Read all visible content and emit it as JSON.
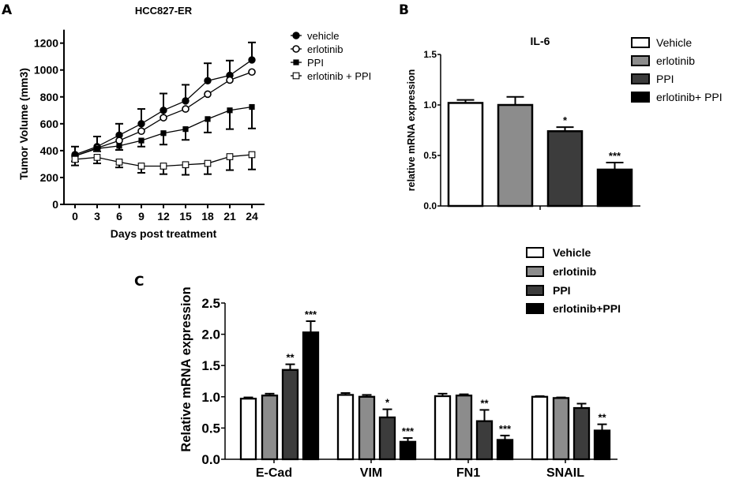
{
  "chart_data": [
    {
      "panel": "A",
      "type": "line",
      "title": "HCC827-ER",
      "xlabel": "Days post treatment",
      "ylabel": "Tumor Volume (mm3)",
      "x": [
        0,
        3,
        6,
        9,
        12,
        15,
        18,
        21,
        24
      ],
      "xticks": [
        "0",
        "3",
        "6",
        "9",
        "12",
        "15",
        "18",
        "21",
        "24"
      ],
      "yticks": [
        "0",
        "200",
        "400",
        "600",
        "800",
        "1000",
        "1200"
      ],
      "ylim": [
        0,
        1300
      ],
      "legend_position": "right",
      "series": [
        {
          "name": "vehicle",
          "marker": "filled-circle",
          "values": [
            370,
            430,
            515,
            600,
            700,
            770,
            920,
            960,
            1075
          ],
          "error_up": [
            60,
            75,
            85,
            110,
            125,
            120,
            130,
            110,
            130
          ]
        },
        {
          "name": "erlotinib",
          "marker": "open-circle",
          "values": [
            360,
            420,
            475,
            545,
            645,
            710,
            820,
            925,
            985
          ],
          "error_up": [
            0,
            0,
            0,
            0,
            0,
            0,
            0,
            0,
            0
          ]
        },
        {
          "name": "PPI",
          "marker": "filled-square",
          "values": [
            360,
            415,
            435,
            475,
            530,
            560,
            635,
            700,
            725
          ],
          "error_down": [
            40,
            20,
            30,
            45,
            85,
            80,
            100,
            140,
            160
          ]
        },
        {
          "name": "erlotinib + PPI",
          "marker": "open-square",
          "values": [
            335,
            350,
            315,
            285,
            285,
            295,
            305,
            355,
            370
          ],
          "error_down": [
            45,
            45,
            40,
            50,
            60,
            75,
            80,
            100,
            110
          ]
        }
      ]
    },
    {
      "panel": "B",
      "type": "bar",
      "title": "IL-6",
      "xlabel": "",
      "ylabel": "relative mRNA expression",
      "yticks": [
        "0.0",
        "0.5",
        "1.0",
        "1.5"
      ],
      "ylim": [
        0,
        1.5
      ],
      "legend_position": "top-right",
      "series": [
        {
          "name": "Vehicle",
          "color": "#ffffff",
          "value": 1.02,
          "error": 0.03,
          "sig": ""
        },
        {
          "name": "erlotinib",
          "color": "#8c8c8c",
          "value": 1.0,
          "error": 0.08,
          "sig": ""
        },
        {
          "name": "PPI",
          "color": "#3c3c3c",
          "value": 0.74,
          "error": 0.04,
          "sig": "*"
        },
        {
          "name": "erlotinib+ PPI",
          "color": "#000000",
          "value": 0.36,
          "error": 0.07,
          "sig": "***"
        }
      ]
    },
    {
      "panel": "C",
      "type": "bar",
      "title": "",
      "xlabel": "",
      "ylabel": "Relative mRNA expression",
      "categories": [
        "E-Cad",
        "VIM",
        "FN1",
        "SNAIL"
      ],
      "yticks": [
        "0.0",
        "0.5",
        "1.0",
        "1.5",
        "2.0",
        "2.5"
      ],
      "ylim": [
        0,
        2.5
      ],
      "legend_position": "top-right",
      "series": [
        {
          "name": "Vehicle",
          "color": "#ffffff",
          "values": [
            0.97,
            1.03,
            1.01,
            1.0
          ],
          "error": [
            0.02,
            0.03,
            0.04,
            0.01
          ],
          "sig": [
            "",
            "",
            "",
            ""
          ]
        },
        {
          "name": "erlotinib",
          "color": "#8c8c8c",
          "values": [
            1.02,
            1.0,
            1.02,
            0.98
          ],
          "error": [
            0.03,
            0.03,
            0.02,
            0.01
          ],
          "sig": [
            "",
            "",
            "",
            ""
          ]
        },
        {
          "name": "PPI",
          "color": "#3c3c3c",
          "values": [
            1.43,
            0.67,
            0.61,
            0.82
          ],
          "error": [
            0.09,
            0.13,
            0.18,
            0.07
          ],
          "sig": [
            "**",
            "*",
            "**",
            ""
          ]
        },
        {
          "name": "erlotinib+PPI",
          "color": "#000000",
          "values": [
            2.03,
            0.28,
            0.31,
            0.46
          ],
          "error": [
            0.18,
            0.06,
            0.07,
            0.1
          ],
          "sig": [
            "***",
            "***",
            "***",
            "**"
          ]
        }
      ]
    }
  ],
  "labels": {
    "a": "A",
    "b": "B",
    "c": "C"
  }
}
